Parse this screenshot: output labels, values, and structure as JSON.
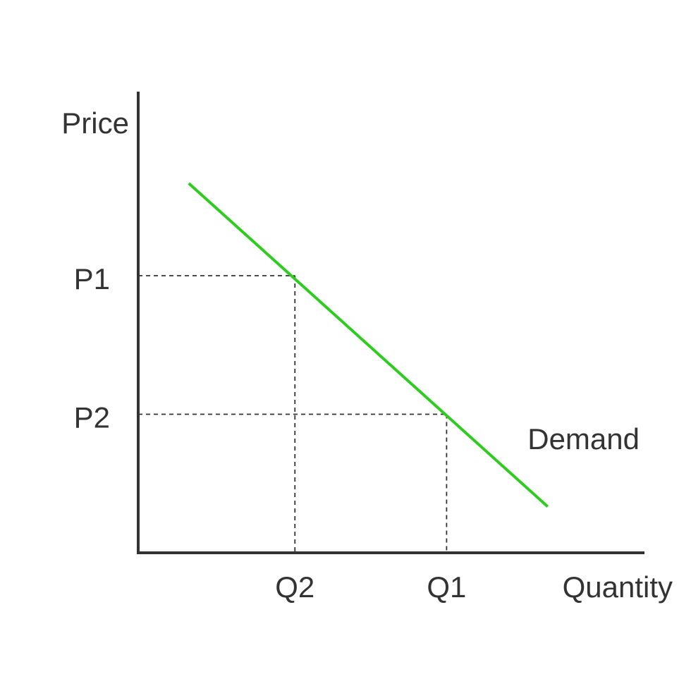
{
  "chart_data": {
    "type": "line",
    "title": "",
    "xlabel": "Quantity",
    "ylabel": "Price",
    "grid": false,
    "legend": "none",
    "xlim": [
      0,
      10
    ],
    "ylim": [
      0,
      10
    ],
    "series": [
      {
        "name": "Demand",
        "color": "#2ecc1f",
        "points": [
          [
            1,
            8
          ],
          [
            8.1,
            1
          ]
        ]
      }
    ],
    "reference_points": [
      {
        "x_label": "Q2",
        "y_label": "P1",
        "x": 3.1,
        "y": 6
      },
      {
        "x_label": "Q1",
        "y_label": "P2",
        "x": 6.1,
        "y": 3
      }
    ],
    "axis_color": "#333333",
    "guide_color": "#333333"
  }
}
